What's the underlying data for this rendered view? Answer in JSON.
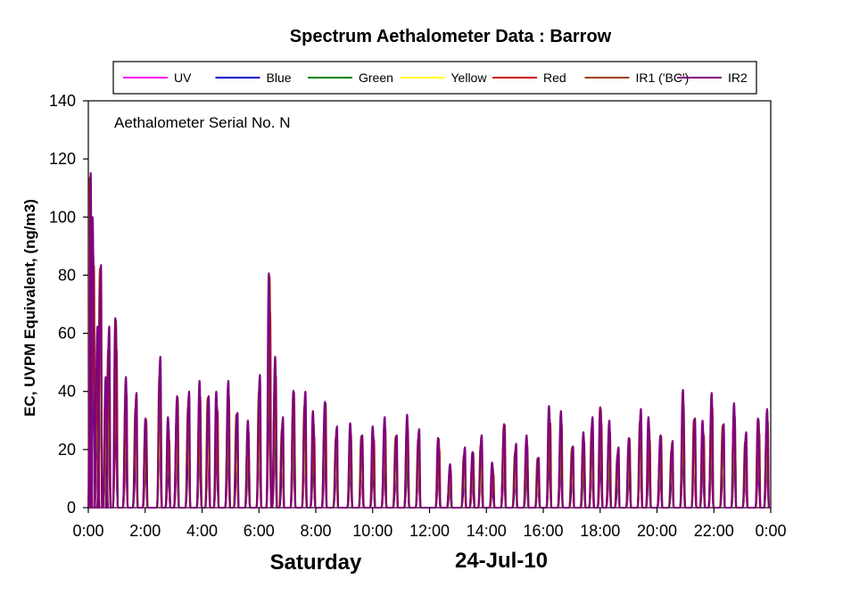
{
  "chart_data": {
    "type": "line",
    "title": "Spectrum Aethalometer Data  :  Barrow",
    "annotation": "Aethalometer  Serial No. N",
    "xlabel": "",
    "ylabel": "EC, UVPM  Equivalent,  (ng/m3)",
    "footer_day": "Saturday",
    "footer_date": "24-Jul-10",
    "ylim": [
      0,
      140
    ],
    "yticks": [
      "0",
      "20",
      "40",
      "60",
      "80",
      "100",
      "120",
      "140"
    ],
    "xlim": [
      0,
      24
    ],
    "xticks": [
      "0:00",
      "2:00",
      "4:00",
      "6:00",
      "8:00",
      "10:00",
      "12:00",
      "14:00",
      "16:00",
      "18:00",
      "20:00",
      "22:00",
      "0:00"
    ],
    "grid": false,
    "legend_position": "top",
    "series": [
      {
        "name": "UV",
        "color": "#FF00FF",
        "ratio": 0.37
      },
      {
        "name": "Blue",
        "color": "#0000CC",
        "ratio": 0.48
      },
      {
        "name": "Green",
        "color": "#008000",
        "ratio": 0.57
      },
      {
        "name": "Yellow",
        "color": "#FFFF00",
        "ratio": 0.67
      },
      {
        "name": "Red",
        "color": "#CC0000",
        "ratio": 0.8
      },
      {
        "name": "IR1 ('BC')",
        "color": "#994400",
        "ratio": 0.91
      },
      {
        "name": "IR2",
        "color": "#800080",
        "ratio": 1.0
      }
    ],
    "peaks_ir2": [
      [
        0.05,
        120
      ],
      [
        0.15,
        100
      ],
      [
        0.3,
        60
      ],
      [
        0.4,
        87
      ],
      [
        0.6,
        45
      ],
      [
        0.7,
        60
      ],
      [
        0.95,
        68
      ],
      [
        1.3,
        45
      ],
      [
        1.65,
        38
      ],
      [
        2.0,
        32
      ],
      [
        2.5,
        52
      ],
      [
        2.8,
        30
      ],
      [
        3.1,
        40
      ],
      [
        3.5,
        40
      ],
      [
        3.9,
        42
      ],
      [
        4.2,
        40
      ],
      [
        4.5,
        40
      ],
      [
        4.9,
        42
      ],
      [
        5.2,
        34
      ],
      [
        5.6,
        30
      ],
      [
        6.0,
        44
      ],
      [
        6.35,
        84
      ],
      [
        6.55,
        52
      ],
      [
        6.8,
        30
      ],
      [
        7.2,
        42
      ],
      [
        7.6,
        40
      ],
      [
        7.9,
        32
      ],
      [
        8.3,
        38
      ],
      [
        8.7,
        28
      ],
      [
        9.2,
        28
      ],
      [
        9.6,
        26
      ],
      [
        10.0,
        28
      ],
      [
        10.4,
        30
      ],
      [
        10.8,
        26
      ],
      [
        11.2,
        32
      ],
      [
        11.6,
        26
      ],
      [
        12.3,
        25
      ],
      [
        12.7,
        15
      ],
      [
        13.2,
        20
      ],
      [
        13.5,
        20
      ],
      [
        13.8,
        25
      ],
      [
        14.2,
        15
      ],
      [
        14.6,
        30
      ],
      [
        15.0,
        22
      ],
      [
        15.4,
        24
      ],
      [
        15.8,
        18
      ],
      [
        16.2,
        35
      ],
      [
        16.6,
        32
      ],
      [
        17.0,
        22
      ],
      [
        17.4,
        26
      ],
      [
        17.7,
        30
      ],
      [
        18.0,
        36
      ],
      [
        18.3,
        30
      ],
      [
        18.6,
        20
      ],
      [
        19.0,
        25
      ],
      [
        19.4,
        34
      ],
      [
        19.7,
        30
      ],
      [
        20.1,
        26
      ],
      [
        20.5,
        23
      ],
      [
        20.9,
        39
      ],
      [
        21.3,
        32
      ],
      [
        21.6,
        30
      ],
      [
        21.9,
        38
      ],
      [
        22.3,
        30
      ],
      [
        22.7,
        36
      ],
      [
        23.1,
        25
      ],
      [
        23.55,
        32
      ],
      [
        23.85,
        34
      ]
    ]
  }
}
